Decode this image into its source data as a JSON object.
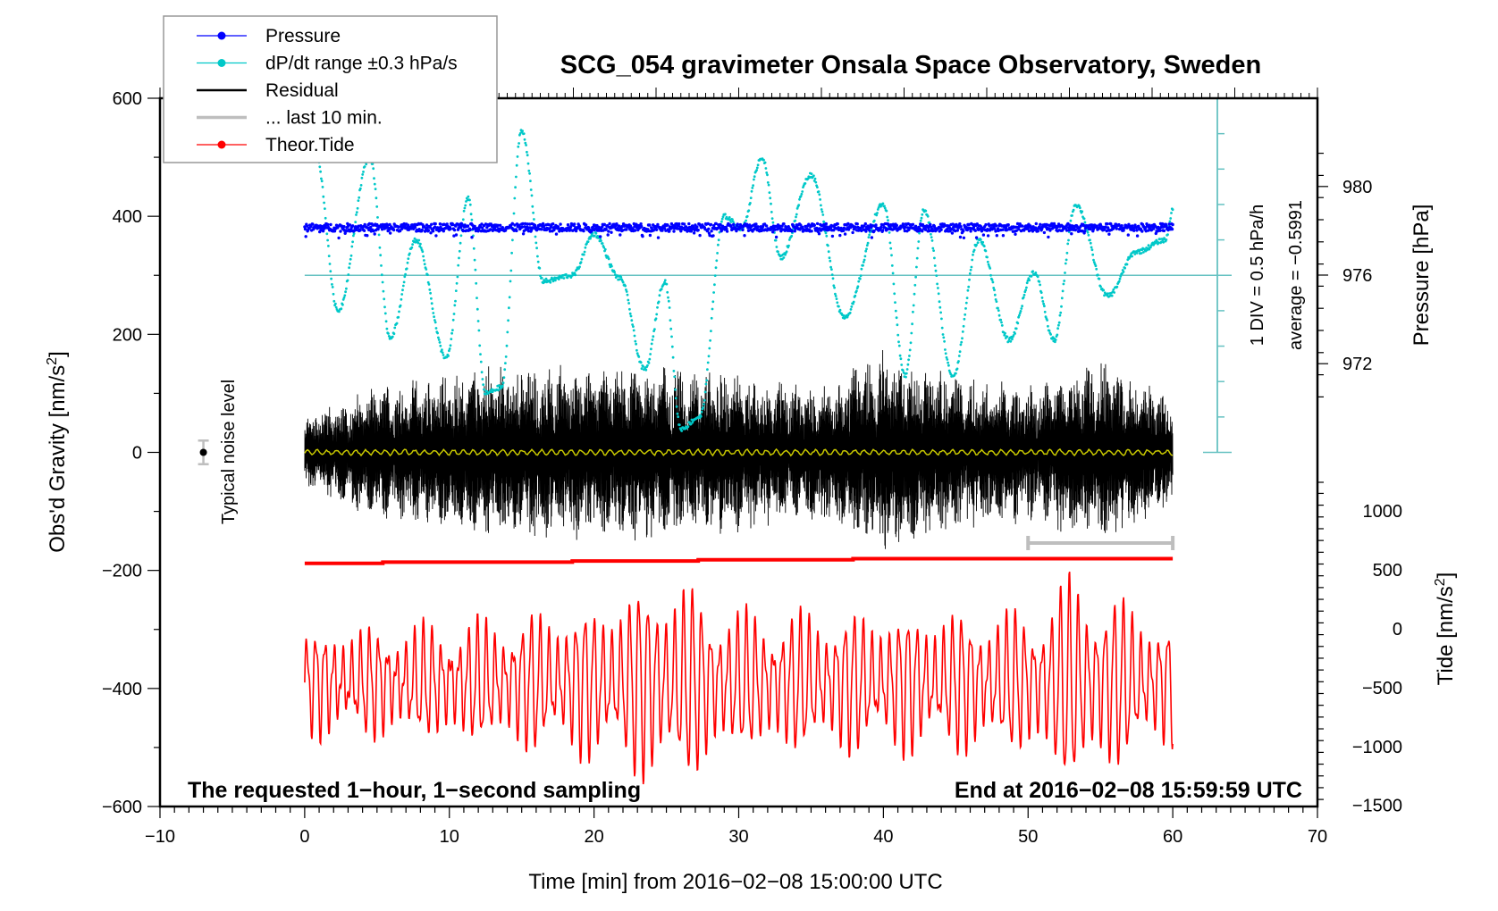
{
  "chart_data": {
    "type": "line",
    "title": "SCG_054 gravimeter Onsala Space Observatory, Sweden",
    "xlabel": "Time [min] from 2016−02−08 15:00:00 UTC",
    "ylabel_left": "Obs'd Gravity [nm/s²]",
    "ylabel_left_main": "Obs'd Gravity [nm/s",
    "ylabel_right_pressure_main": "Pressure [hPa]",
    "ylabel_right_tide_main": "Tide [nm/s",
    "unit_sup": "2",
    "unit_close": "]",
    "xlim": [
      -10,
      70
    ],
    "ylim_left": [
      -600,
      600
    ],
    "x_ticks": [
      -10,
      0,
      10,
      20,
      30,
      40,
      50,
      60,
      70
    ],
    "x_tick_labels": [
      "−10",
      "0",
      "10",
      "20",
      "30",
      "40",
      "50",
      "60",
      "70"
    ],
    "y_left_ticks": [
      -600,
      -400,
      -200,
      0,
      200,
      400,
      600
    ],
    "y_left_tick_labels": [
      "−600",
      "−400",
      "−200",
      "0",
      "200",
      "400",
      "600"
    ],
    "pressure_axis": {
      "ticks": [
        980,
        976,
        972
      ],
      "tick_labels": [
        "980",
        "976",
        "972"
      ],
      "range_visible": [
        971,
        981
      ]
    },
    "tide_axis": {
      "ticks": [
        1000,
        500,
        0,
        -500,
        -1000,
        -1500
      ],
      "tick_labels": [
        "1000",
        "500",
        "0",
        "−500",
        "−1000",
        "−1500"
      ],
      "range": [
        -1500,
        1000
      ]
    },
    "dpdt_scale": {
      "div_label": "1 DIV = 0.5 hPa/h",
      "average_label": "average = −0.5991",
      "divisions": 10,
      "center_left_value": 300
    },
    "legend": {
      "placement": "top-left",
      "entries": [
        {
          "label": "Pressure",
          "color": "#0000ff",
          "marker": true
        },
        {
          "label": "dP/dt range ±0.3 hPa/s",
          "color": "#00c8c8",
          "marker": true
        },
        {
          "label": "Residual",
          "color": "#000000",
          "marker": false
        },
        {
          "label": "... last 10 min.",
          "color": "#bebebe",
          "marker": false
        },
        {
          "label": "Theor.Tide",
          "color": "#ff0000",
          "marker": true
        }
      ]
    },
    "annotations": {
      "bottom_left": "The requested 1−hour, 1−second sampling",
      "bottom_right": "End at 2016−02−08 15:59:59 UTC",
      "noise_label": "Typical noise level",
      "noise_level": {
        "x": -7,
        "y": 0,
        "err": 20
      }
    },
    "series": [
      {
        "name": "Pressure",
        "color": "#0000ff",
        "axis": "pressure",
        "mean_hPa": 978.15,
        "x_range": [
          0,
          60
        ],
        "note": "near-constant with small scatter"
      },
      {
        "name": "dP/dt",
        "color": "#00c8c8",
        "axis": "left-display",
        "x": [
          0.8,
          2.3,
          4.5,
          5.9,
          7.7,
          9.8,
          11.3,
          12.5,
          13.6,
          15.0,
          16.5,
          18.5,
          20.0,
          21.8,
          23.5,
          24.9,
          26.0,
          27.3,
          29.0,
          30.2,
          31.6,
          32.9,
          35.0,
          37.3,
          40.0,
          41.5,
          42.8,
          44.8,
          46.6,
          48.7,
          50.4,
          51.8,
          53.3,
          55.5,
          57.5,
          59.5,
          60.0
        ],
        "y": [
          500,
          240,
          500,
          195,
          360,
          160,
          430,
          100,
          110,
          545,
          290,
          300,
          370,
          295,
          140,
          290,
          40,
          60,
          400,
          380,
          500,
          330,
          470,
          230,
          420,
          130,
          410,
          130,
          360,
          190,
          305,
          190,
          420,
          265,
          340,
          360,
          410
        ]
      },
      {
        "name": "Residual",
        "color": "#000000",
        "axis": "left",
        "x_range": [
          0,
          60
        ],
        "amplitude_envelope_x": [
          0,
          5,
          10,
          15,
          20,
          25,
          30,
          35,
          40,
          45,
          50,
          55,
          60
        ],
        "amplitude_envelope": [
          60,
          110,
          130,
          150,
          140,
          150,
          130,
          110,
          170,
          130,
          110,
          160,
          90
        ]
      },
      {
        "name": "Residual (smoothed)",
        "color": "#c8c800",
        "axis": "left",
        "y_mean": 0
      },
      {
        "name": "... last 10 min.",
        "color": "#bebebe",
        "axis": "left",
        "x_range": [
          50,
          60
        ],
        "y": -150
      },
      {
        "name": "Theor.Tide",
        "color": "#ff0000",
        "axis": "left-display",
        "x": [
          0,
          5.4,
          5.4,
          18.5,
          18.5,
          27.2,
          27.2,
          37.9,
          37.9,
          60
        ],
        "y": [
          -188,
          -188,
          -186,
          -186,
          -184,
          -184,
          -182,
          -182,
          -180,
          -180
        ]
      },
      {
        "name": "Tide trace (gray)",
        "color": "#bebebe",
        "axis": "left",
        "x_range": [
          0,
          60
        ],
        "center": -390,
        "amplitude_envelope_x": [
          0,
          10,
          20,
          25,
          30,
          40,
          50,
          53,
          60
        ],
        "amplitude_envelope": [
          80,
          90,
          120,
          170,
          110,
          110,
          110,
          170,
          90
        ]
      }
    ]
  }
}
